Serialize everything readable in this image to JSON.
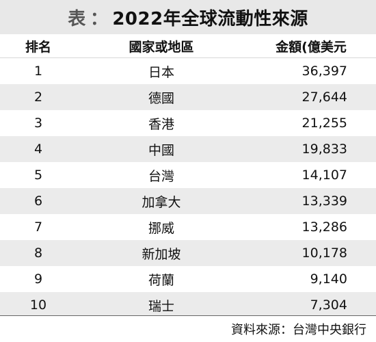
{
  "title": {
    "prefix": "表",
    "separator": "：",
    "main": "2022年全球流動性來源"
  },
  "table": {
    "headers": {
      "rank": "排名",
      "region": "國家或地區",
      "amount": "金額(億美元"
    },
    "rows": [
      {
        "rank": "1",
        "region": "日本",
        "amount": "36,397"
      },
      {
        "rank": "2",
        "region": "德國",
        "amount": "27,644"
      },
      {
        "rank": "3",
        "region": "香港",
        "amount": "21,255"
      },
      {
        "rank": "4",
        "region": "中國",
        "amount": "19,833"
      },
      {
        "rank": "5",
        "region": "台灣",
        "amount": "14,107"
      },
      {
        "rank": "6",
        "region": "加拿大",
        "amount": "13,339"
      },
      {
        "rank": "7",
        "region": "挪威",
        "amount": "13,286"
      },
      {
        "rank": "8",
        "region": "新加坡",
        "amount": "10,178"
      },
      {
        "rank": "9",
        "region": "荷蘭",
        "amount": "9,140"
      },
      {
        "rank": "10",
        "region": "瑞士",
        "amount": "7,304"
      }
    ]
  },
  "source": "資料來源：台灣中央銀行",
  "colors": {
    "title_background": "#e8e8e8",
    "stripe_background": "#ebebeb",
    "text": "#111111"
  }
}
